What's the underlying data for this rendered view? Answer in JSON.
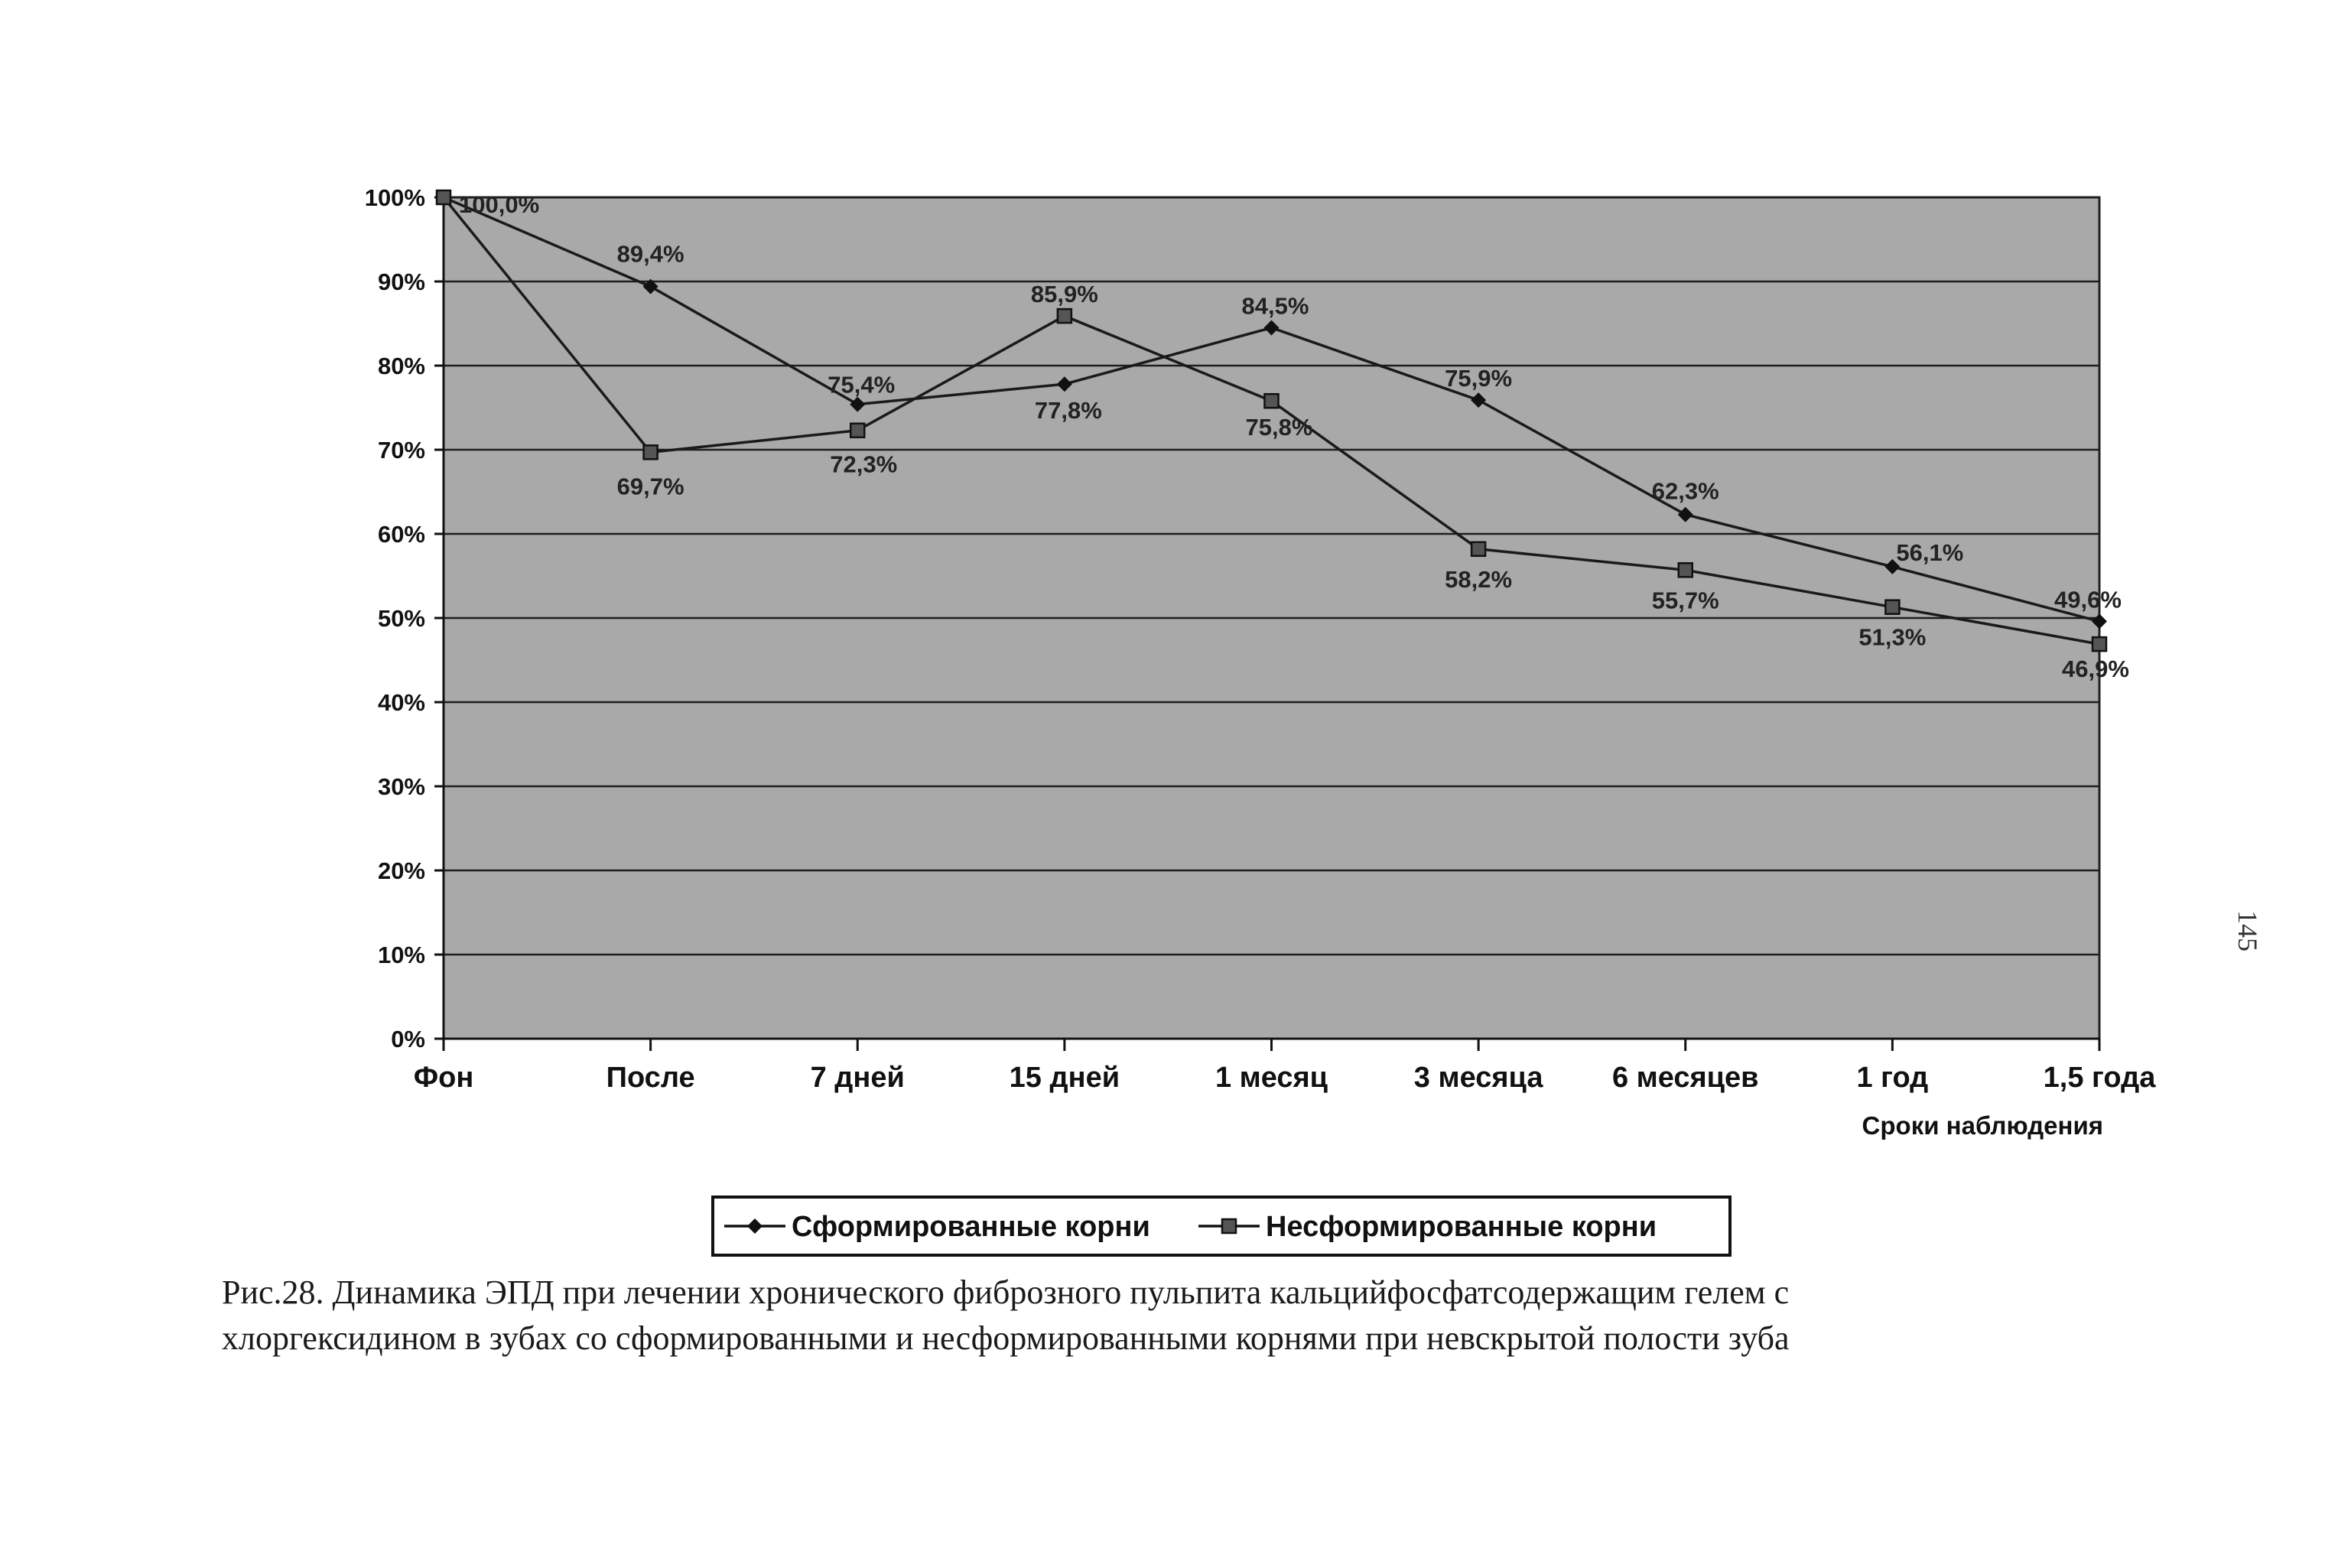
{
  "chart_data": {
    "type": "line",
    "categories": [
      "Фон",
      "После",
      "7 дней",
      "15 дней",
      "1 месяц",
      "3 месяца",
      "6 месяцев",
      "1 год",
      "1,5 года"
    ],
    "series": [
      {
        "name": "Сформированные корни",
        "values": [
          100.0,
          89.4,
          75.4,
          77.8,
          84.5,
          75.9,
          62.3,
          56.1,
          49.6
        ],
        "labels": [
          "100,0%",
          "89,4%",
          "75,4%",
          "77,8%",
          "84,5%",
          "75,9%",
          "62,3%",
          "56,1%",
          "49,6%"
        ],
        "marker": "diamond",
        "color": "#1a1a1a"
      },
      {
        "name": "Несформированные корни",
        "values": [
          100.0,
          69.7,
          72.3,
          85.9,
          75.8,
          58.2,
          55.7,
          51.3,
          46.9
        ],
        "labels": [
          "",
          "69,7%",
          "72,3%",
          "85,9%",
          "75,8%",
          "58,2%",
          "55,7%",
          "51,3%",
          "46,9%"
        ],
        "marker": "square",
        "color": "#1a1a1a"
      }
    ],
    "xlabel": "Сроки наблюдения",
    "ylabel": "",
    "ylim": [
      0,
      100
    ],
    "yticks": [
      "0%",
      "10%",
      "20%",
      "30%",
      "40%",
      "50%",
      "60%",
      "70%",
      "80%",
      "90%",
      "100%"
    ],
    "grid": true,
    "legend": "bottom-center",
    "plot_background": "#a9a9a9"
  },
  "caption": {
    "line1": "Рис.28. Динамика ЭПД при лечении хронического фиброзного пульпита кальцийфосфатсодержащим гелем с",
    "line2": "хлоргексидином в зубах со сформированными и несформированными корнями при невскрытой полости зуба"
  },
  "page_number": "145"
}
